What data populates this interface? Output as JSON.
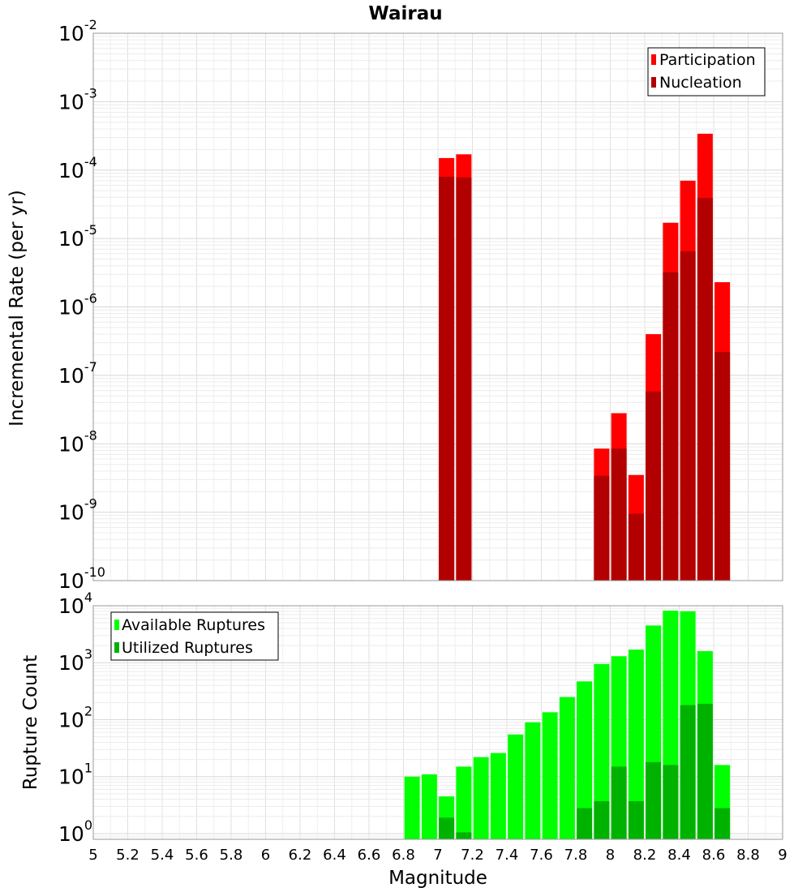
{
  "title": "Wairau",
  "chart_data": [
    {
      "type": "bar",
      "ylabel": "Incremental Rate (per yr)",
      "y_scale": "log",
      "ylim_exp": [
        -10,
        -2
      ],
      "xlim": [
        5,
        9
      ],
      "legend_position": "top-right",
      "series": [
        {
          "name": "Participation",
          "color": "#ff0000",
          "x": [
            7.05,
            7.15,
            7.95,
            8.05,
            8.15,
            8.25,
            8.35,
            8.45,
            8.55,
            8.65
          ],
          "values": [
            0.00015,
            0.00017,
            8.5e-09,
            2.8e-08,
            3.5e-09,
            4e-07,
            1.7e-05,
            7e-05,
            0.00034,
            2.3e-06
          ]
        },
        {
          "name": "Nucleation",
          "color": "#b20000",
          "x": [
            7.05,
            7.15,
            7.95,
            8.05,
            8.15,
            8.25,
            8.35,
            8.45,
            8.55,
            8.65
          ],
          "values": [
            8e-05,
            7.8e-05,
            3.4e-09,
            8.5e-09,
            9.5e-10,
            5.8e-08,
            3.2e-06,
            6.5e-06,
            3.9e-05,
            2.2e-07
          ]
        }
      ],
      "y_ticks": [
        {
          "base": "10",
          "exp": "-10"
        },
        {
          "base": "10",
          "exp": "-9"
        },
        {
          "base": "10",
          "exp": "-8"
        },
        {
          "base": "10",
          "exp": "-7"
        },
        {
          "base": "10",
          "exp": "-6"
        },
        {
          "base": "10",
          "exp": "-5"
        },
        {
          "base": "10",
          "exp": "-4"
        },
        {
          "base": "10",
          "exp": "-3"
        },
        {
          "base": "10",
          "exp": "-2"
        }
      ]
    },
    {
      "type": "bar",
      "ylabel": "Rupture Count",
      "xlabel": "Magnitude",
      "y_scale": "log",
      "ylim_exp": [
        -0.1,
        4
      ],
      "xlim": [
        5,
        9
      ],
      "legend_position": "top-left",
      "series": [
        {
          "name": "Available Ruptures",
          "color": "#00ff00",
          "x": [
            6.85,
            6.95,
            7.05,
            7.15,
            7.25,
            7.35,
            7.45,
            7.55,
            7.65,
            7.75,
            7.85,
            7.95,
            8.05,
            8.15,
            8.25,
            8.35,
            8.45,
            8.55,
            8.65
          ],
          "values": [
            10,
            11,
            4.5,
            15,
            22,
            26,
            55,
            90,
            135,
            250,
            470,
            950,
            1300,
            1700,
            4500,
            8200,
            8000,
            1600,
            16
          ]
        },
        {
          "name": "Utilized Ruptures",
          "color": "#00b200",
          "x": [
            7.05,
            7.15,
            7.85,
            7.95,
            8.05,
            8.15,
            8.25,
            8.35,
            8.45,
            8.55,
            8.65
          ],
          "values": [
            1.9,
            1.05,
            2.8,
            3.7,
            15,
            3.7,
            18,
            16,
            180,
            190,
            2.8
          ]
        }
      ],
      "y_ticks": [
        {
          "base": "10",
          "exp": "0"
        },
        {
          "base": "10",
          "exp": "1"
        },
        {
          "base": "10",
          "exp": "2"
        },
        {
          "base": "10",
          "exp": "3"
        },
        {
          "base": "10",
          "exp": "4"
        }
      ],
      "x_ticks": [
        "5",
        "5.2",
        "5.4",
        "5.6",
        "5.8",
        "6",
        "6.2",
        "6.4",
        "6.6",
        "6.8",
        "7",
        "7.2",
        "7.4",
        "7.6",
        "7.8",
        "8",
        "8.2",
        "8.4",
        "8.6",
        "8.8",
        "9"
      ]
    }
  ]
}
